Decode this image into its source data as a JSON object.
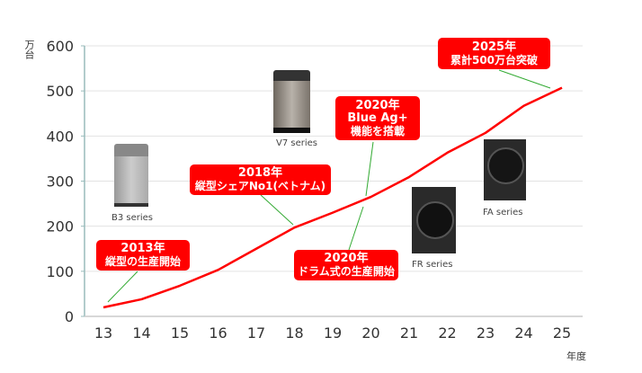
{
  "chart_data": {
    "type": "line",
    "ylabel": "万台",
    "xlabel": "年度",
    "x": [
      13,
      14,
      15,
      16,
      17,
      18,
      19,
      20,
      21,
      22,
      23,
      24,
      25
    ],
    "series": [
      {
        "values": [
          20,
          38,
          68,
          103,
          150,
          197,
          230,
          265,
          309,
          363,
          407,
          467,
          507
        ],
        "color": "#ff0000"
      }
    ],
    "ylim": [
      0,
      600
    ],
    "yticks": [
      0,
      100,
      200,
      300,
      400,
      500,
      600
    ],
    "grid": true,
    "annotations": [
      {
        "year_label": "2013年",
        "text": "縦型の生産開始"
      },
      {
        "year_label": "2018年",
        "text": "縦型シェアNo1(ベトナム)"
      },
      {
        "year_label": "2020年",
        "text": "Blue Ag+",
        "text2": "機能を搭載"
      },
      {
        "year_label": "2020年",
        "text": "ドラム式の生産開始"
      },
      {
        "year_label": "2025年",
        "text": "累計500万台突破"
      }
    ],
    "products": [
      "B3 series",
      "V7 series",
      "FR series",
      "FA series"
    ],
    "annotation_color": "#ff0000",
    "leader_color": "#33aa33"
  }
}
